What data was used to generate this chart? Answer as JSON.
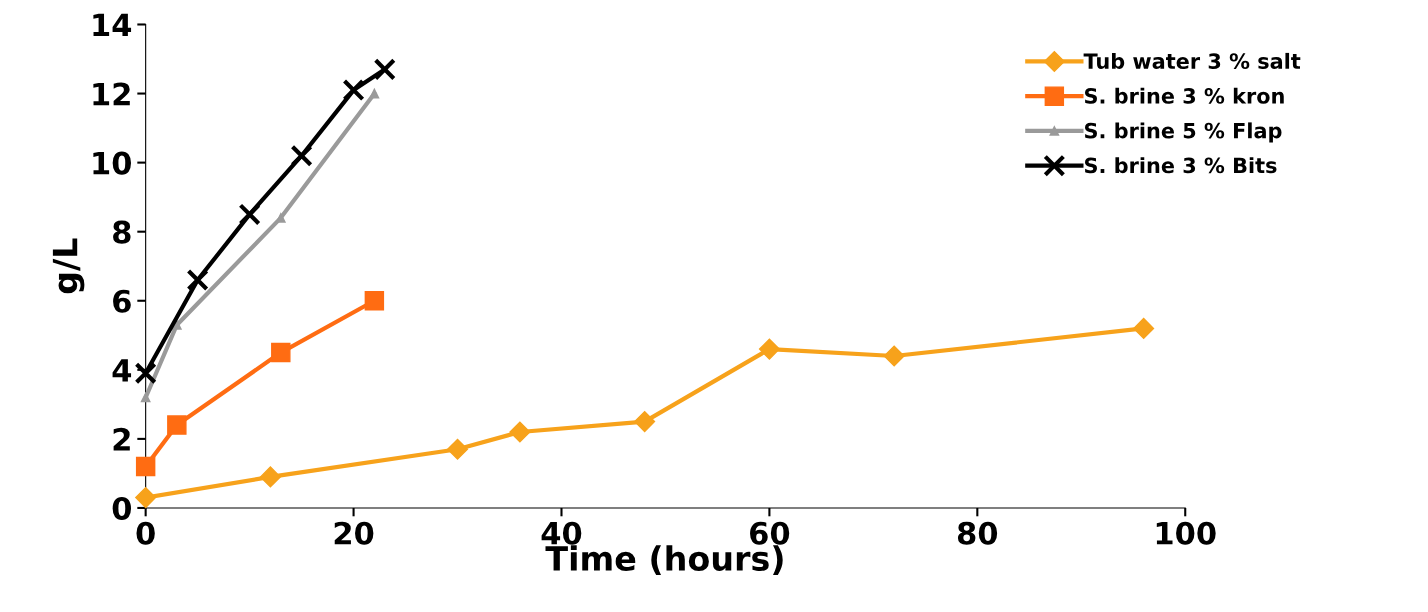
{
  "chart_data": {
    "type": "line",
    "xlabel": "Time (hours)",
    "ylabel": "g/L",
    "xlim": [
      0,
      100
    ],
    "xticks": [
      0,
      20,
      40,
      60,
      80,
      100
    ],
    "ylim": [
      0,
      14
    ],
    "yticks": [
      0,
      2,
      4,
      6,
      8,
      10,
      12,
      14
    ],
    "grid": false,
    "legend": "top right",
    "series": [
      {
        "name": "Tub water 3 % salt",
        "color": "#f7a21b",
        "marker": "diamond",
        "x": [
          0,
          12,
          30,
          36,
          48,
          60,
          72,
          96
        ],
        "values": [
          0.3,
          0.9,
          1.7,
          2.2,
          2.5,
          4.6,
          4.4,
          5.2
        ]
      },
      {
        "name": "S. brine 3 % kron",
        "color": "#ff6c12",
        "marker": "square",
        "x": [
          0,
          3,
          13,
          22
        ],
        "values": [
          1.2,
          2.4,
          4.5,
          6.0
        ]
      },
      {
        "name": "S. brine 5 % Flap",
        "color": "#9a9a9a",
        "marker": "triangle",
        "x": [
          0,
          3,
          13,
          22
        ],
        "values": [
          3.2,
          5.3,
          8.4,
          12.0
        ]
      },
      {
        "name": "S. brine 3 % Bits",
        "color": "#000000",
        "marker": "cross",
        "x": [
          0,
          5,
          10,
          15,
          20,
          23
        ],
        "values": [
          3.9,
          6.6,
          8.5,
          10.2,
          12.1,
          12.7
        ]
      }
    ]
  }
}
